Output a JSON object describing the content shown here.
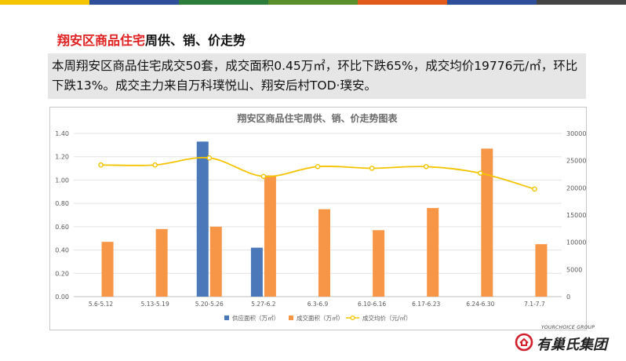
{
  "colors": {
    "stripes": [
      "#f5c400",
      "#2f4f9a",
      "#2d7d3a",
      "#5a8f2e",
      "#e05a1a",
      "#2f4f9a",
      "#444444"
    ],
    "supply": "#4a78b8",
    "sales": "#f79646",
    "price": "#f5c400",
    "title_red": "#e02020"
  },
  "header": {
    "title_red": "翔安区商品住宅",
    "title_rest": "周供、销、价走势"
  },
  "summary": {
    "text": "本周翔安区商品住宅成交50套，成交面积0.45万㎡，环比下跌65%，成交均价19776元/㎡，环比下跌13%。成交主力来自万科璞悦山、翔安后村TOD·璞安。"
  },
  "chart_data": {
    "type": "bar",
    "title": "翔安区商品住宅周供、销、价走势图表",
    "categories": [
      "5.6-5.12",
      "5.13-5.19",
      "5.20-5.26",
      "5.27-6.2",
      "6.3-6.9",
      "6.10-6.16",
      "6.17-6.23",
      "6.24-6.30",
      "7.1-7.7"
    ],
    "left_axis": {
      "min": 0,
      "max": 1.4,
      "ticks": [
        "0.00",
        "0.20",
        "0.40",
        "0.60",
        "0.80",
        "1.00",
        "1.20",
        "1.40"
      ]
    },
    "right_axis": {
      "min": 0,
      "max": 30000,
      "ticks": [
        "0",
        "5000",
        "10000",
        "15000",
        "20000",
        "25000",
        "30000"
      ]
    },
    "series": [
      {
        "name": "供应面积（万㎡）",
        "type": "bar",
        "axis": "left",
        "values": [
          0,
          0,
          1.33,
          0.42,
          0,
          0,
          0,
          0,
          0
        ]
      },
      {
        "name": "成交面积（万㎡）",
        "type": "bar",
        "axis": "left",
        "values": [
          0.47,
          0.58,
          0.6,
          1.04,
          0.75,
          0.57,
          0.76,
          1.27,
          0.45
        ]
      },
      {
        "name": "成交均价（元/㎡）",
        "type": "line",
        "axis": "right",
        "values": [
          24200,
          24200,
          25500,
          22100,
          23900,
          23600,
          23900,
          22700,
          19776
        ]
      }
    ],
    "grid": true,
    "legend_position": "bottom"
  },
  "logo": {
    "small": "YOURCHOICE GROUP",
    "name": "有巢氏集团"
  }
}
